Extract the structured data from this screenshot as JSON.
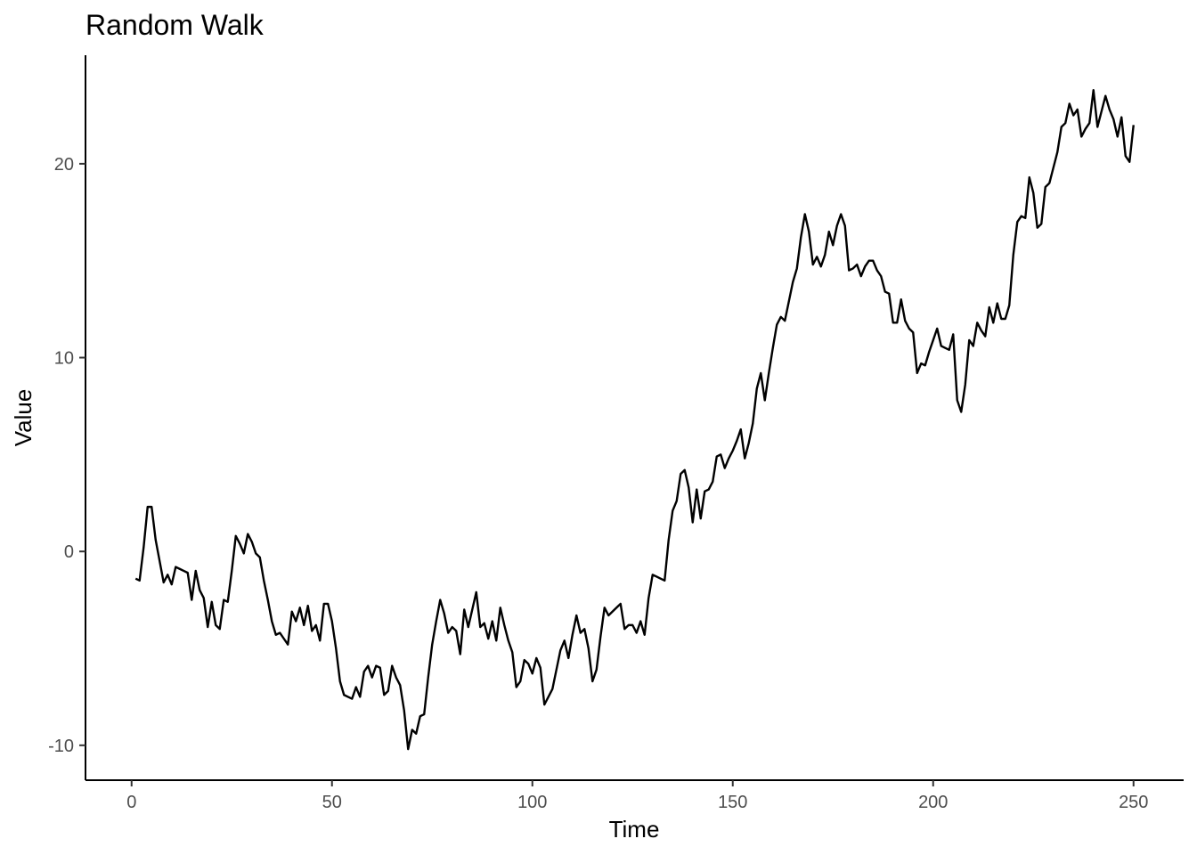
{
  "chart_data": {
    "type": "line",
    "title": "Random Walk",
    "xlabel": "Time",
    "ylabel": "Value",
    "xlim": [
      -11.5,
      262.5
    ],
    "ylim": [
      -11.8,
      25.6
    ],
    "x_ticks": [
      0,
      50,
      100,
      150,
      200,
      250
    ],
    "y_ticks": [
      -10,
      0,
      10,
      20
    ],
    "x_tick_labels": [
      "0",
      "50",
      "100",
      "150",
      "200",
      "250"
    ],
    "y_tick_labels": [
      "-10",
      "0",
      "10",
      "20"
    ],
    "grid": false,
    "legend": "none",
    "line_color": "#000000",
    "series": [
      {
        "x_start": 1,
        "x_step": 1,
        "values": [
          -1.4,
          -1.5,
          0.2,
          2.3,
          2.3,
          0.6,
          -0.5,
          -1.6,
          -1.2,
          -1.7,
          -0.8,
          -0.9,
          -1.0,
          -1.1,
          -2.5,
          -1.0,
          -2.0,
          -2.4,
          -3.9,
          -2.6,
          -3.8,
          -4.0,
          -2.5,
          -2.6,
          -1.0,
          0.8,
          0.4,
          -0.1,
          0.9,
          0.5,
          -0.1,
          -0.3,
          -1.5,
          -2.5,
          -3.6,
          -4.3,
          -4.2,
          -4.5,
          -4.8,
          -3.1,
          -3.6,
          -2.9,
          -3.8,
          -2.8,
          -4.1,
          -3.8,
          -4.6,
          -2.7,
          -2.7,
          -3.6,
          -5.0,
          -6.7,
          -7.4,
          -7.5,
          -7.6,
          -7.0,
          -7.5,
          -6.2,
          -5.9,
          -6.5,
          -5.9,
          -6.0,
          -7.4,
          -7.2,
          -5.9,
          -6.5,
          -6.9,
          -8.2,
          -10.2,
          -9.2,
          -9.4,
          -8.5,
          -8.4,
          -6.5,
          -4.8,
          -3.6,
          -2.5,
          -3.2,
          -4.2,
          -3.9,
          -4.1,
          -5.3,
          -3.0,
          -3.9,
          -3.0,
          -2.1,
          -3.9,
          -3.7,
          -4.5,
          -3.6,
          -4.6,
          -2.9,
          -3.8,
          -4.6,
          -5.2,
          -7.0,
          -6.7,
          -5.6,
          -5.8,
          -6.3,
          -5.5,
          -6.0,
          -7.9,
          -7.5,
          -7.1,
          -6.1,
          -5.1,
          -4.6,
          -5.5,
          -4.3,
          -3.3,
          -4.2,
          -4.0,
          -5.0,
          -6.7,
          -6.1,
          -4.4,
          -2.9,
          -3.3,
          -3.1,
          -2.9,
          -2.7,
          -4.0,
          -3.8,
          -3.8,
          -4.2,
          -3.6,
          -4.3,
          -2.4,
          -1.2,
          -1.3,
          -1.4,
          -1.5,
          0.6,
          2.1,
          2.6,
          4.0,
          4.2,
          3.3,
          1.5,
          3.2,
          1.7,
          3.1,
          3.2,
          3.6,
          4.9,
          5.0,
          4.3,
          4.8,
          5.2,
          5.7,
          6.3,
          4.8,
          5.6,
          6.6,
          8.4,
          9.2,
          7.8,
          9.2,
          10.5,
          11.7,
          12.1,
          11.9,
          12.9,
          13.9,
          14.6,
          16.2,
          17.4,
          16.5,
          14.8,
          15.2,
          14.7,
          15.3,
          16.5,
          15.8,
          16.8,
          17.4,
          16.8,
          14.5,
          14.6,
          14.8,
          14.2,
          14.7,
          15.0,
          15.0,
          14.5,
          14.2,
          13.4,
          13.3,
          11.8,
          11.8,
          13.0,
          11.9,
          11.5,
          11.3,
          9.2,
          9.7,
          9.6,
          10.3,
          10.9,
          11.5,
          10.6,
          10.5,
          10.4,
          11.2,
          7.8,
          7.2,
          8.6,
          10.9,
          10.6,
          11.8,
          11.4,
          11.1,
          12.6,
          11.8,
          12.8,
          12.0,
          12.0,
          12.7,
          15.3,
          17.0,
          17.3,
          17.2,
          19.3,
          18.5,
          16.7,
          16.9,
          18.8,
          19.0,
          19.8,
          20.6,
          21.9,
          22.1,
          23.1,
          22.5,
          22.8,
          21.4,
          21.8,
          22.1,
          23.8,
          21.9,
          22.7,
          23.5,
          22.8,
          22.3,
          21.4,
          22.4,
          20.4,
          20.1,
          22.0
        ]
      }
    ]
  }
}
